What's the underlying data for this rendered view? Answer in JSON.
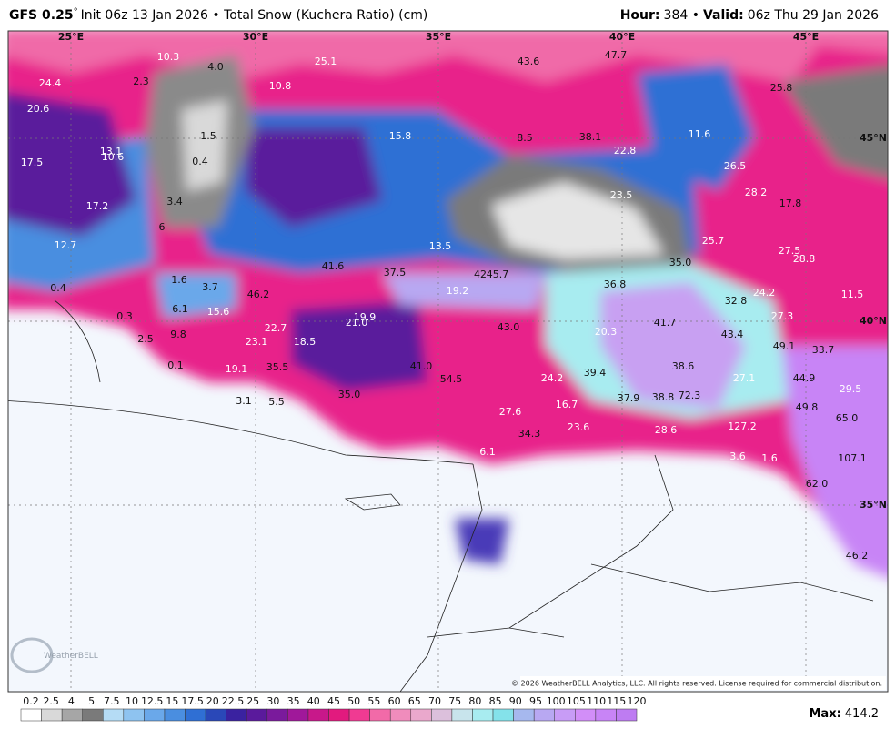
{
  "header": {
    "model": "GFS 0.25",
    "degree": "°",
    "init": "Init 06z 13 Jan 2026 • Total Snow (Kuchera Ratio) (cm)",
    "hour_label": "Hour:",
    "hour": "384 •",
    "valid_label": "Valid:",
    "valid": "06z Thu 29 Jan 2026"
  },
  "map": {
    "lon_labels": [
      "25°E",
      "30°E",
      "35°E",
      "40°E",
      "45°E"
    ],
    "lat_labels": [
      "45°N",
      "40°N",
      "35°N"
    ],
    "labels": [
      "10.3",
      "4.0",
      "25.1",
      "43.6",
      "47.7",
      "24.4",
      "2.3",
      "10.8",
      "25.8",
      "20.6",
      "1.5",
      "15.8",
      "8.5",
      "38.1",
      "11.6",
      "13.1",
      "10.6",
      "0.4",
      "22.8",
      "17.5",
      "26.5",
      "28.2",
      "17.2",
      "3.4",
      "23.5",
      "17.8",
      "6",
      "12.7",
      "13.5",
      "25.7",
      "27.5",
      "28.8",
      "35.0",
      "41.6",
      "37.5",
      "42",
      "45.7",
      "1.6",
      "0.4",
      "3.7",
      "46.2",
      "19.2",
      "36.8",
      "24.2",
      "11.5",
      "32.8",
      "15.6",
      "0.3",
      "6.1",
      "19.9",
      "21.0",
      "27.3",
      "22.7",
      "43.0",
      "41.7",
      "20.3",
      "43.4",
      "9.8",
      "23.1",
      "18.5",
      "2.5",
      "49.1",
      "33.7",
      "0.1",
      "35.5",
      "41.0",
      "38.6",
      "19.1",
      "39.4",
      "24.2",
      "54.5",
      "27.1",
      "44.9",
      "29.5",
      "35.0",
      "72.3",
      "38.8",
      "37.9",
      "3.1",
      "5.5",
      "16.7",
      "49.8",
      "65.0",
      "27.6",
      "23.6",
      "127.2",
      "34.3",
      "28.6",
      "6.1",
      "3.6",
      "1.6",
      "107.1",
      "62.0",
      "46.2"
    ],
    "copyright": "© 2026 WeatherBELL Analytics, LLC. All rights reserved. License required for commercial distribution.",
    "logo": "WeatherBELL"
  },
  "legend": {
    "labels": [
      "0.2",
      "2.5",
      "4",
      "5",
      "7.5",
      "10",
      "12.5",
      "15",
      "17.5",
      "20",
      "22.5",
      "25",
      "30",
      "35",
      "40",
      "45",
      "50",
      "55",
      "60",
      "65",
      "70",
      "75",
      "80",
      "85",
      "90",
      "95",
      "100",
      "105",
      "110",
      "115",
      "120"
    ],
    "colors": [
      "#ffffff",
      "#d9d9d9",
      "#a6a6a6",
      "#7a7a7a",
      "#b5dcf5",
      "#8ec3f0",
      "#6aa8ea",
      "#4a8ee0",
      "#2f6fd4",
      "#2a48b8",
      "#3a22a0",
      "#5a1a9c",
      "#7a1a9c",
      "#a0189a",
      "#c8188a",
      "#e21a7e",
      "#f03a92",
      "#f26aa8",
      "#f08cbc",
      "#eaa8cc",
      "#dcc0dc",
      "#c8e4ec",
      "#a8ecf0",
      "#84e2ea",
      "#a6b8ee",
      "#b8a8f2",
      "#c89cf6",
      "#d28ef8",
      "#c884f6",
      "#be7cf2"
    ],
    "max_label": "Max:",
    "max": "414.2"
  }
}
